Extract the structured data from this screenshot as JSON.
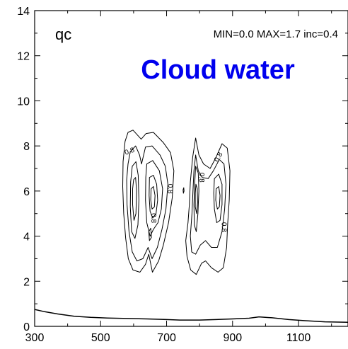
{
  "chart_data": {
    "type": "contour",
    "variable_label": "qc",
    "title": "Cloud water",
    "title_color": "#0000ee",
    "stats_text": "MIN=0.0 MAX=1.7 inc=0.4",
    "xlim": [
      300,
      1250
    ],
    "ylim": [
      0,
      14
    ],
    "x_ticks": [
      {
        "value": 300,
        "label": "300"
      },
      {
        "value": 500,
        "label": "500"
      },
      {
        "value": 700,
        "label": "700"
      },
      {
        "value": 900,
        "label": "900"
      },
      {
        "value": 1100,
        "label": "1100"
      }
    ],
    "y_ticks": [
      {
        "value": 0,
        "label": "0"
      },
      {
        "value": 2,
        "label": "2"
      },
      {
        "value": 4,
        "label": "4"
      },
      {
        "value": 6,
        "label": "6"
      },
      {
        "value": 8,
        "label": "8"
      },
      {
        "value": 10,
        "label": "10"
      },
      {
        "value": 12,
        "label": "12"
      },
      {
        "value": 14,
        "label": "14"
      }
    ],
    "contour_interval": 0.4,
    "contour_labels": [
      {
        "text": "0.8",
        "x": 588,
        "y": 7.75,
        "angle": -20
      },
      {
        "text": "0.8",
        "x": 710,
        "y": 6.1,
        "angle": 90
      },
      {
        "text": "0.8",
        "x": 660,
        "y": 4.8,
        "angle": 90
      },
      {
        "text": "0.8",
        "x": 805,
        "y": 6.6,
        "angle": 90
      },
      {
        "text": "0.8",
        "x": 858,
        "y": 7.5,
        "angle": -60
      },
      {
        "text": "0.8",
        "x": 873,
        "y": 4.4,
        "angle": 90
      }
    ],
    "contours": [
      {
        "name": "left-cell-outer",
        "points": [
          [
            583,
            8.6
          ],
          [
            598,
            8.7
          ],
          [
            623,
            8.3
          ],
          [
            638,
            8.55
          ],
          [
            660,
            8.6
          ],
          [
            690,
            8.15
          ],
          [
            712,
            7.7
          ],
          [
            722,
            6.9
          ],
          [
            717,
            5.7
          ],
          [
            706,
            4.6
          ],
          [
            690,
            3.6
          ],
          [
            676,
            2.9
          ],
          [
            657,
            2.4
          ],
          [
            646,
            3.2
          ],
          [
            636,
            2.75
          ],
          [
            619,
            2.4
          ],
          [
            598,
            2.5
          ],
          [
            584,
            3.0
          ],
          [
            576,
            3.9
          ],
          [
            570,
            5.0
          ],
          [
            567,
            6.2
          ],
          [
            568,
            7.3
          ],
          [
            574,
            8.2
          ],
          [
            583,
            8.6
          ]
        ]
      },
      {
        "name": "left-cell-1",
        "points": [
          [
            590,
            7.75
          ],
          [
            606,
            8.0
          ],
          [
            618,
            7.6
          ],
          [
            624,
            7.2
          ],
          [
            636,
            7.95
          ],
          [
            656,
            8.0
          ],
          [
            680,
            7.6
          ],
          [
            696,
            7.1
          ],
          [
            704,
            6.3
          ],
          [
            698,
            5.2
          ],
          [
            686,
            4.3
          ],
          [
            672,
            3.5
          ],
          [
            656,
            3.0
          ],
          [
            644,
            3.5
          ],
          [
            628,
            3.0
          ],
          [
            610,
            2.9
          ],
          [
            596,
            3.3
          ],
          [
            586,
            4.2
          ],
          [
            580,
            5.4
          ],
          [
            579,
            6.5
          ],
          [
            583,
            7.2
          ],
          [
            590,
            7.75
          ]
        ]
      },
      {
        "name": "left-cell-2a",
        "points": [
          [
            596,
            7.1
          ],
          [
            607,
            7.3
          ],
          [
            614,
            6.7
          ],
          [
            616,
            5.6
          ],
          [
            613,
            4.5
          ],
          [
            604,
            3.9
          ],
          [
            594,
            4.2
          ],
          [
            590,
            5.3
          ],
          [
            591,
            6.4
          ],
          [
            596,
            7.1
          ]
        ]
      },
      {
        "name": "left-cell-2b",
        "points": [
          [
            640,
            7.2
          ],
          [
            658,
            7.35
          ],
          [
            678,
            6.9
          ],
          [
            688,
            6.1
          ],
          [
            684,
            5.2
          ],
          [
            674,
            4.6
          ],
          [
            660,
            4.3
          ],
          [
            650,
            4.0
          ],
          [
            640,
            4.6
          ],
          [
            636,
            5.6
          ],
          [
            637,
            6.6
          ],
          [
            640,
            7.2
          ]
        ]
      },
      {
        "name": "left-cell-3a",
        "points": [
          [
            600,
            6.5
          ],
          [
            606,
            6.6
          ],
          [
            609,
            6.0
          ],
          [
            607,
            5.0
          ],
          [
            601,
            4.7
          ],
          [
            597,
            5.4
          ],
          [
            597,
            6.1
          ],
          [
            600,
            6.5
          ]
        ]
      },
      {
        "name": "left-cell-3b",
        "points": [
          [
            648,
            6.6
          ],
          [
            660,
            6.7
          ],
          [
            670,
            6.3
          ],
          [
            673,
            5.6
          ],
          [
            668,
            5.0
          ],
          [
            658,
            4.8
          ],
          [
            650,
            5.1
          ],
          [
            647,
            5.8
          ],
          [
            648,
            6.6
          ]
        ]
      },
      {
        "name": "left-cell-4b",
        "points": [
          [
            653,
            6.1
          ],
          [
            660,
            6.2
          ],
          [
            665,
            5.8
          ],
          [
            663,
            5.3
          ],
          [
            656,
            5.2
          ],
          [
            652,
            5.6
          ],
          [
            653,
            6.1
          ]
        ]
      },
      {
        "name": "left-cell-notch",
        "points": [
          [
            646,
            4.2
          ],
          [
            652,
            4.35
          ],
          [
            654,
            3.95
          ],
          [
            648,
            3.8
          ],
          [
            646,
            4.2
          ]
        ]
      },
      {
        "name": "right-cell-outer",
        "points": [
          [
            788,
            8.35
          ],
          [
            798,
            7.6
          ],
          [
            812,
            7.2
          ],
          [
            832,
            7.0
          ],
          [
            850,
            7.5
          ],
          [
            868,
            8.1
          ],
          [
            884,
            7.9
          ],
          [
            892,
            6.9
          ],
          [
            890,
            5.6
          ],
          [
            885,
            4.5
          ],
          [
            882,
            3.5
          ],
          [
            872,
            2.6
          ],
          [
            856,
            2.4
          ],
          [
            836,
            2.6
          ],
          [
            818,
            2.9
          ],
          [
            806,
            2.8
          ],
          [
            790,
            2.3
          ],
          [
            773,
            2.5
          ],
          [
            762,
            3.1
          ],
          [
            758,
            3.8
          ],
          [
            765,
            4.6
          ],
          [
            769,
            5.4
          ],
          [
            772,
            6.4
          ],
          [
            779,
            7.5
          ],
          [
            788,
            8.35
          ]
        ]
      },
      {
        "name": "right-cell-1",
        "points": [
          [
            788,
            7.6
          ],
          [
            796,
            6.9
          ],
          [
            808,
            6.6
          ],
          [
            826,
            6.55
          ],
          [
            842,
            6.9
          ],
          [
            860,
            7.4
          ],
          [
            874,
            7.2
          ],
          [
            880,
            6.3
          ],
          [
            876,
            5.2
          ],
          [
            868,
            4.2
          ],
          [
            854,
            3.5
          ],
          [
            836,
            3.5
          ],
          [
            818,
            3.8
          ],
          [
            802,
            3.6
          ],
          [
            788,
            3.2
          ],
          [
            776,
            3.3
          ],
          [
            772,
            4.0
          ],
          [
            777,
            5.0
          ],
          [
            780,
            6.0
          ],
          [
            783,
            6.9
          ],
          [
            788,
            7.6
          ]
        ]
      },
      {
        "name": "right-cell-2a",
        "points": [
          [
            788,
            7.1
          ],
          [
            796,
            6.8
          ],
          [
            798,
            6.0
          ],
          [
            795,
            5.0
          ],
          [
            790,
            4.2
          ],
          [
            784,
            4.5
          ],
          [
            783,
            5.4
          ],
          [
            785,
            6.3
          ],
          [
            788,
            7.1
          ]
        ]
      },
      {
        "name": "right-cell-2b",
        "points": [
          [
            845,
            6.55
          ],
          [
            858,
            6.75
          ],
          [
            868,
            6.3
          ],
          [
            868,
            5.4
          ],
          [
            862,
            4.7
          ],
          [
            852,
            4.6
          ],
          [
            845,
            5.2
          ],
          [
            843,
            5.9
          ],
          [
            845,
            6.55
          ]
        ]
      },
      {
        "name": "right-cell-3a",
        "points": [
          [
            789,
            6.3
          ],
          [
            793,
            6.1
          ],
          [
            794,
            5.5
          ],
          [
            791,
            5.0
          ],
          [
            787,
            5.3
          ],
          [
            787,
            5.9
          ],
          [
            789,
            6.3
          ]
        ]
      },
      {
        "name": "right-cell-3b",
        "points": [
          [
            850,
            6.1
          ],
          [
            858,
            6.2
          ],
          [
            862,
            5.8
          ],
          [
            860,
            5.3
          ],
          [
            854,
            5.2
          ],
          [
            849,
            5.6
          ],
          [
            850,
            6.1
          ]
        ]
      },
      {
        "name": "speck",
        "points": [
          [
            750,
            6.05
          ],
          [
            752,
            6.15
          ],
          [
            753,
            6.0
          ],
          [
            751,
            5.9
          ],
          [
            750,
            6.05
          ]
        ]
      }
    ],
    "surface_line": [
      [
        300,
        0.75
      ],
      [
        330,
        0.65
      ],
      [
        370,
        0.55
      ],
      [
        420,
        0.45
      ],
      [
        470,
        0.4
      ],
      [
        520,
        0.37
      ],
      [
        580,
        0.35
      ],
      [
        640,
        0.33
      ],
      [
        700,
        0.3
      ],
      [
        740,
        0.28
      ],
      [
        800,
        0.28
      ],
      [
        850,
        0.3
      ],
      [
        900,
        0.33
      ],
      [
        950,
        0.36
      ],
      [
        980,
        0.42
      ],
      [
        1020,
        0.38
      ],
      [
        1070,
        0.3
      ],
      [
        1120,
        0.25
      ],
      [
        1180,
        0.2
      ],
      [
        1250,
        0.18
      ]
    ]
  }
}
